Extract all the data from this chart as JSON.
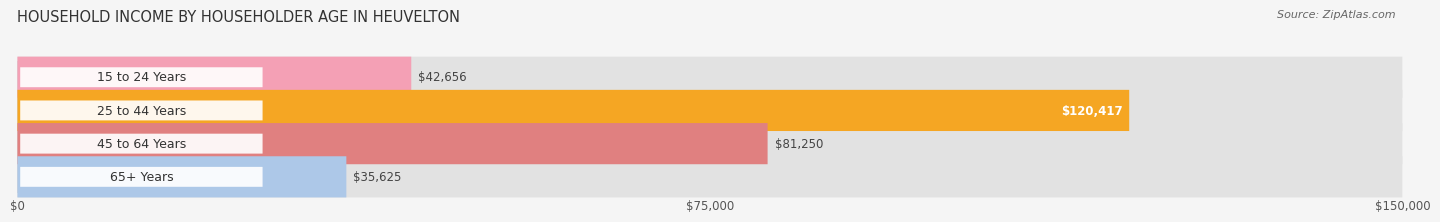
{
  "title": "HOUSEHOLD INCOME BY HOUSEHOLDER AGE IN HEUVELTON",
  "source": "Source: ZipAtlas.com",
  "categories": [
    "15 to 24 Years",
    "25 to 44 Years",
    "45 to 64 Years",
    "65+ Years"
  ],
  "values": [
    42656,
    120417,
    81250,
    35625
  ],
  "bar_colors": [
    "#f4a0b5",
    "#f5a623",
    "#e08080",
    "#adc8e8"
  ],
  "x_max": 150000,
  "x_ticks": [
    0,
    75000,
    150000
  ],
  "x_tick_labels": [
    "$0",
    "$75,000",
    "$150,000"
  ],
  "value_labels": [
    "$42,656",
    "$120,417",
    "$81,250",
    "$35,625"
  ],
  "bar_height": 0.62,
  "background_color": "#f5f5f5",
  "bar_background_color": "#e2e2e2",
  "title_fontsize": 10.5,
  "label_fontsize": 9,
  "value_fontsize": 8.5,
  "tick_fontsize": 8.5
}
